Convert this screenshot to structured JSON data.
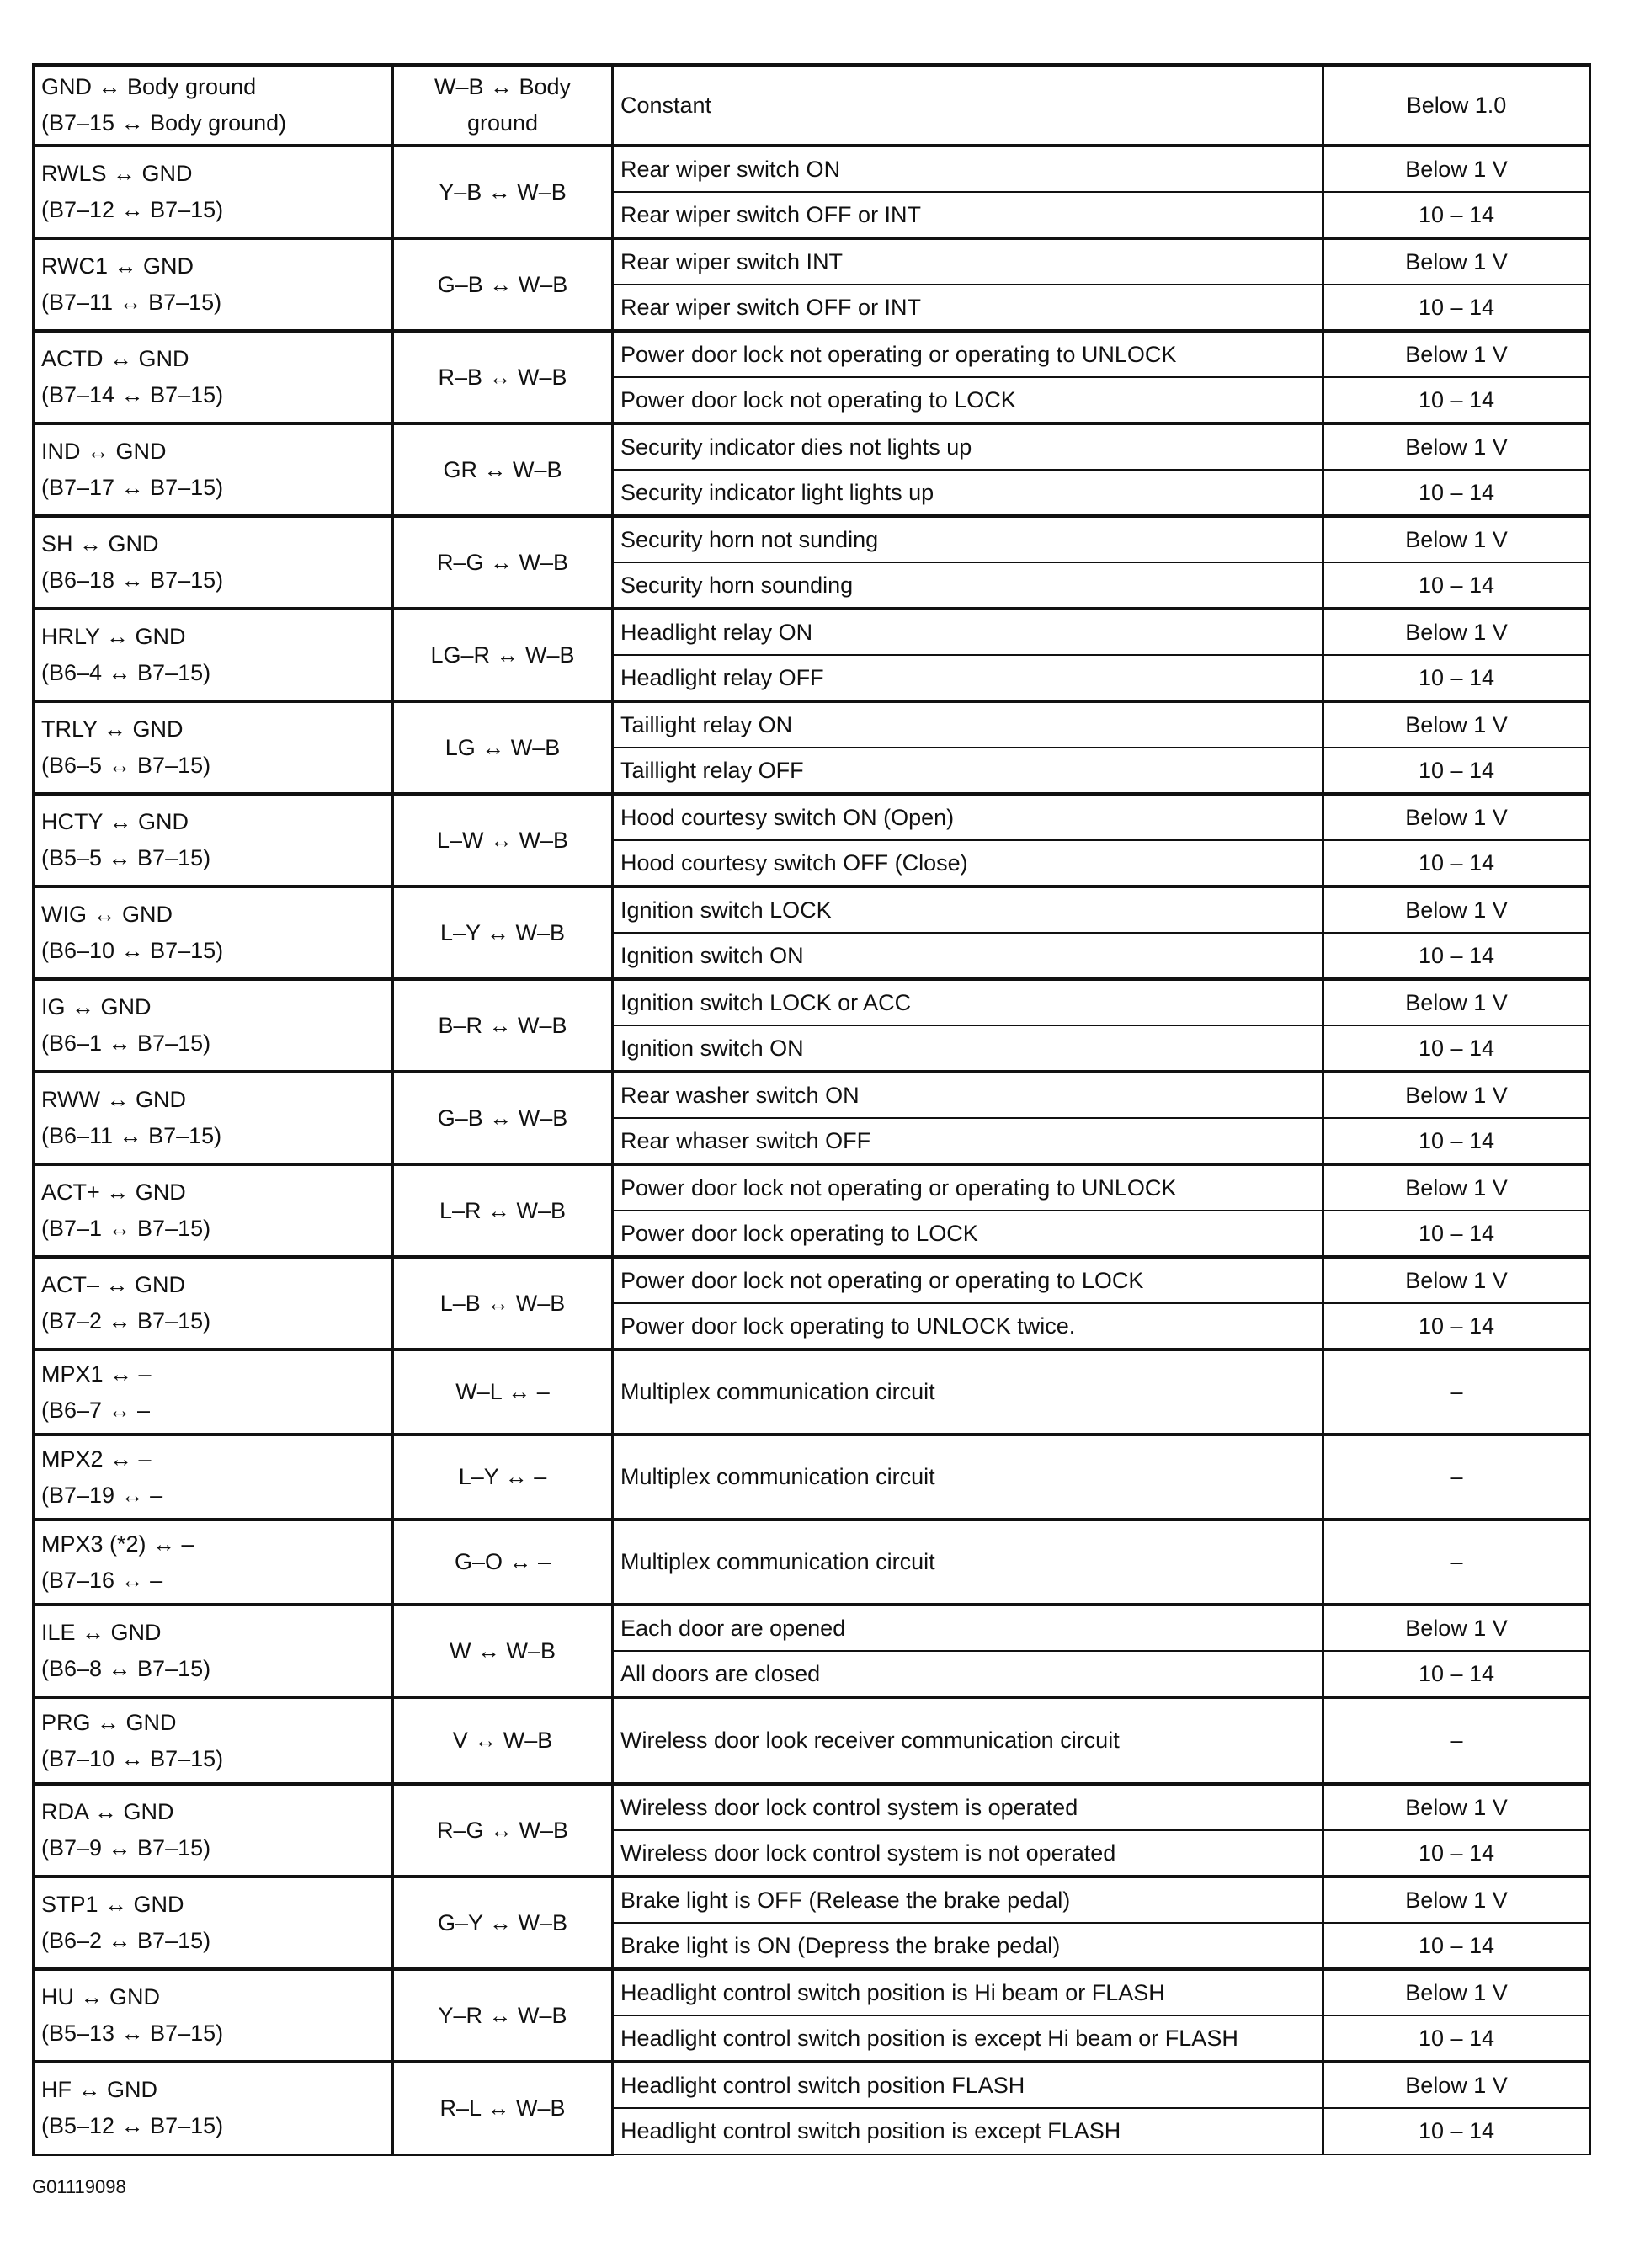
{
  "rows": [
    {
      "t1": "GND ↔ Body ground",
      "t2": "(B7–15 ↔ Body ground)",
      "wire": "W–B ↔ Body ground",
      "conds": [
        {
          "c": "Constant",
          "s": "Below 1.0"
        }
      ]
    },
    {
      "t1": "RWLS ↔ GND",
      "t2": "(B7–12 ↔ B7–15)",
      "wire": "Y–B ↔ W–B",
      "conds": [
        {
          "c": "Rear wiper switch ON",
          "s": "Below 1 V"
        },
        {
          "c": "Rear wiper switch OFF or INT",
          "s": "10 – 14"
        }
      ]
    },
    {
      "t1": "RWC1 ↔ GND",
      "t2": "(B7–11 ↔ B7–15)",
      "wire": "G–B ↔ W–B",
      "conds": [
        {
          "c": "Rear wiper switch INT",
          "s": "Below 1 V"
        },
        {
          "c": "Rear wiper switch OFF or INT",
          "s": "10 – 14"
        }
      ]
    },
    {
      "t1": "ACTD ↔ GND",
      "t2": "(B7–14 ↔ B7–15)",
      "wire": "R–B ↔ W–B",
      "conds": [
        {
          "c": "Power door lock not operating or operating to UNLOCK",
          "s": "Below 1 V"
        },
        {
          "c": "Power door lock not operating to LOCK",
          "s": "10 – 14"
        }
      ]
    },
    {
      "t1": "IND ↔ GND",
      "t2": "(B7–17 ↔ B7–15)",
      "wire": "GR ↔ W–B",
      "conds": [
        {
          "c": "Security indicator dies not lights up",
          "s": "Below 1 V"
        },
        {
          "c": "Security indicator light lights up",
          "s": "10 – 14"
        }
      ]
    },
    {
      "t1": "SH ↔ GND",
      "t2": "(B6–18 ↔ B7–15)",
      "wire": "R–G ↔ W–B",
      "conds": [
        {
          "c": "Security horn not sunding",
          "s": "Below 1 V"
        },
        {
          "c": "Security horn sounding",
          "s": "10 – 14"
        }
      ]
    },
    {
      "t1": "HRLY ↔ GND",
      "t2": "(B6–4 ↔ B7–15)",
      "wire": "LG–R ↔ W–B",
      "conds": [
        {
          "c": "Headlight relay ON",
          "s": "Below 1 V"
        },
        {
          "c": "Headlight relay OFF",
          "s": "10 – 14"
        }
      ]
    },
    {
      "t1": "TRLY ↔ GND",
      "t2": "(B6–5 ↔ B7–15)",
      "wire": "LG ↔ W–B",
      "conds": [
        {
          "c": "Taillight relay ON",
          "s": "Below 1 V"
        },
        {
          "c": "Taillight relay OFF",
          "s": "10 – 14"
        }
      ]
    },
    {
      "t1": "HCTY ↔ GND",
      "t2": "(B5–5 ↔ B7–15)",
      "wire": "L–W ↔ W–B",
      "conds": [
        {
          "c": "Hood courtesy switch ON (Open)",
          "s": "Below 1 V"
        },
        {
          "c": "Hood courtesy switch OFF (Close)",
          "s": "10 – 14"
        }
      ]
    },
    {
      "t1": "WIG ↔ GND",
      "t2": "(B6–10 ↔ B7–15)",
      "wire": "L–Y ↔ W–B",
      "conds": [
        {
          "c": "Ignition switch LOCK",
          "s": "Below 1 V"
        },
        {
          "c": "Ignition switch ON",
          "s": "10 – 14"
        }
      ]
    },
    {
      "t1": "IG ↔ GND",
      "t2": "(B6–1 ↔ B7–15)",
      "wire": "B–R ↔ W–B",
      "conds": [
        {
          "c": "Ignition switch LOCK or ACC",
          "s": "Below 1 V"
        },
        {
          "c": "Ignition switch ON",
          "s": "10 – 14"
        }
      ]
    },
    {
      "t1": "RWW ↔ GND",
      "t2": "(B6–11 ↔ B7–15)",
      "wire": "G–B ↔ W–B",
      "conds": [
        {
          "c": "Rear washer switch ON",
          "s": "Below 1 V"
        },
        {
          "c": "Rear whaser switch OFF",
          "s": "10 – 14"
        }
      ]
    },
    {
      "t1": "ACT+ ↔ GND",
      "t2": "(B7–1 ↔ B7–15)",
      "wire": "L–R ↔ W–B",
      "conds": [
        {
          "c": "Power door lock not operating or operating to UNLOCK",
          "s": "Below 1 V"
        },
        {
          "c": "Power door lock operating to LOCK",
          "s": "10 – 14"
        }
      ]
    },
    {
      "t1": "ACT– ↔ GND",
      "t2": "(B7–2 ↔ B7–15)",
      "wire": "L–B ↔ W–B",
      "conds": [
        {
          "c": "Power door lock not operating or operating to LOCK",
          "s": "Below 1 V"
        },
        {
          "c": "Power door lock operating to UNLOCK twice.",
          "s": "10 – 14"
        }
      ]
    },
    {
      "t1": "MPX1 ↔ –",
      "t2": "(B6–7 ↔ –",
      "wire": "W–L ↔ –",
      "conds": [
        {
          "c": "Multiplex communication circuit",
          "s": "–"
        }
      ]
    },
    {
      "t1": "MPX2 ↔ –",
      "t2": "(B7–19 ↔ –",
      "wire": "L–Y ↔ –",
      "conds": [
        {
          "c": "Multiplex communication circuit",
          "s": "–"
        }
      ]
    },
    {
      "t1": "MPX3 (*2) ↔ –",
      "t2": "(B7–16 ↔ –",
      "wire": "G–O ↔ –",
      "conds": [
        {
          "c": "Multiplex communication circuit",
          "s": "–"
        }
      ]
    },
    {
      "t1": "ILE ↔ GND",
      "t2": "(B6–8 ↔ B7–15)",
      "wire": "W ↔ W–B",
      "conds": [
        {
          "c": "Each door are opened",
          "s": "Below 1 V"
        },
        {
          "c": "All doors are closed",
          "s": "10 – 14"
        }
      ]
    },
    {
      "t1": "PRG ↔ GND",
      "t2": "(B7–10 ↔ B7–15)",
      "wire": "V ↔ W–B",
      "conds": [
        {
          "c": "Wireless door look receiver communication circuit",
          "s": "–"
        }
      ]
    },
    {
      "t1": "RDA ↔ GND",
      "t2": "(B7–9 ↔ B7–15)",
      "wire": "R–G ↔ W–B",
      "conds": [
        {
          "c": "Wireless door lock control system is operated",
          "s": "Below 1 V"
        },
        {
          "c": "Wireless door lock control system is not operated",
          "s": "10 – 14"
        }
      ]
    },
    {
      "t1": "STP1 ↔ GND",
      "t2": "(B6–2 ↔ B7–15)",
      "wire": "G–Y ↔ W–B",
      "conds": [
        {
          "c": "Brake light is OFF (Release the brake pedal)",
          "s": "Below 1 V"
        },
        {
          "c": "Brake light is ON (Depress the brake pedal)",
          "s": "10 – 14"
        }
      ]
    },
    {
      "t1": "HU ↔ GND",
      "t2": "(B5–13 ↔ B7–15)",
      "wire": "Y–R ↔ W–B",
      "conds": [
        {
          "c": "Headlight control switch position is Hi beam or FLASH",
          "s": "Below 1 V"
        },
        {
          "c": "Headlight control switch position is except Hi beam or FLASH",
          "s": "10 – 14"
        }
      ]
    },
    {
      "t1": "HF ↔ GND",
      "t2": "(B5–12 ↔ B7–15)",
      "wire": "R–L ↔ W–B",
      "conds": [
        {
          "c": "Headlight control switch position FLASH",
          "s": "Below 1 V"
        },
        {
          "c": "Headlight control switch position is except FLASH",
          "s": "10 – 14"
        }
      ]
    }
  ],
  "caption": "G01119098"
}
